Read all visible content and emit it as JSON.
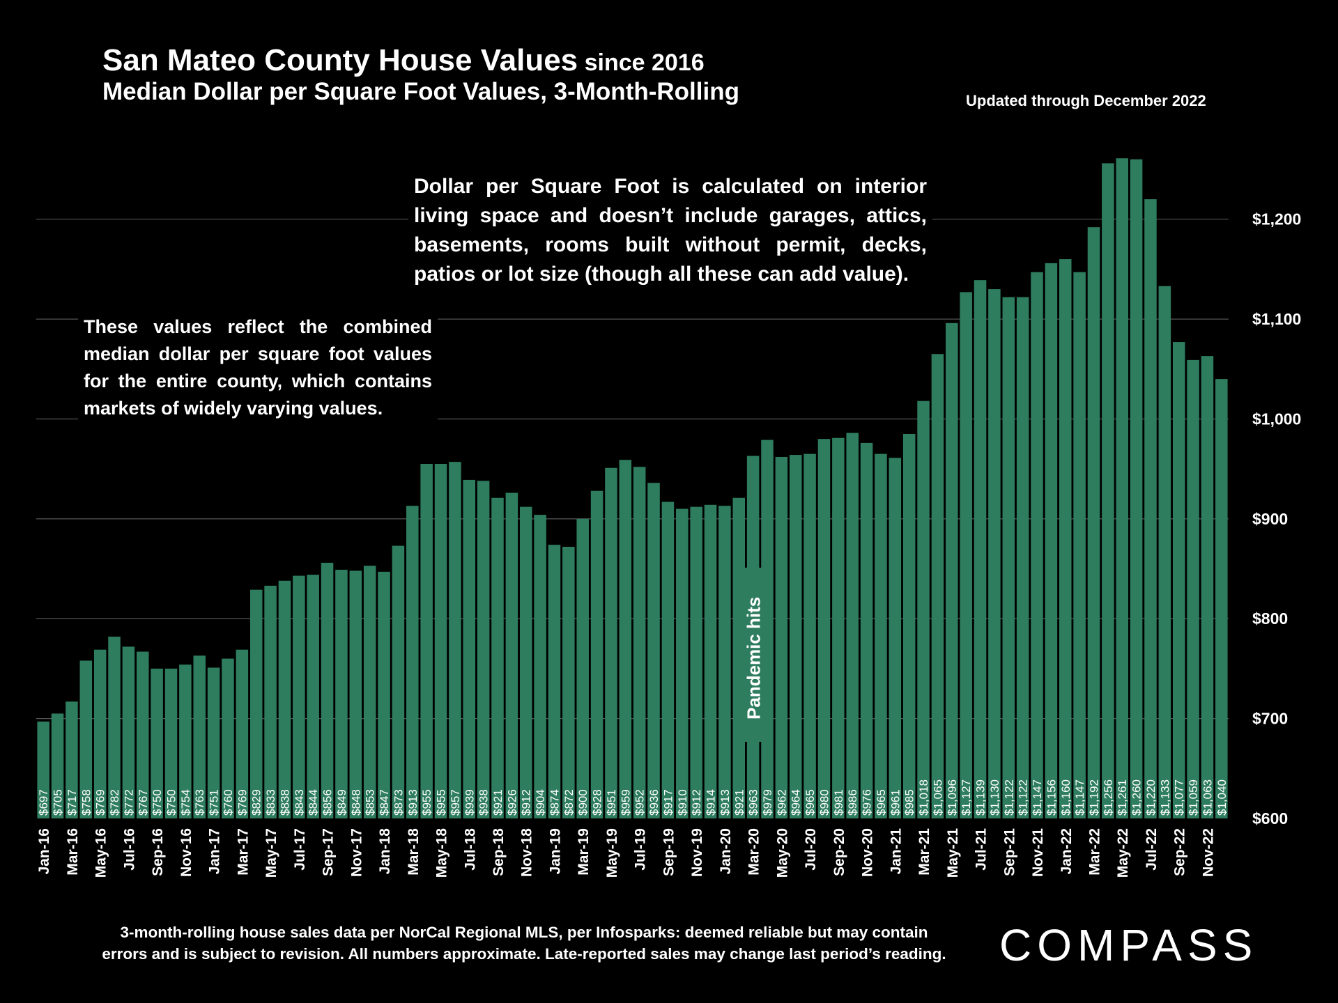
{
  "header": {
    "title": "San Mateo County House Values",
    "title_suffix": " since 2016",
    "subtitle": "Median Dollar per Square Foot Values, 3-Month-Rolling",
    "updated": "Updated through December 2022"
  },
  "notes": {
    "right": "Dollar per Square Foot is calculated on interior living space and doesn’t include garages, attics, basements, rooms built without permit, decks, patios or lot size (though all these can add value).",
    "left": "These values reflect the combined median dollar per square foot values for the entire county, which contains markets of widely varying values."
  },
  "footnote": {
    "line1": "3-month-rolling house sales data per NorCal Regional MLS, per Infosparks:  deemed reliable but may contain",
    "line2": "errors and is subject to revision. All numbers approximate. Late-reported sales may change last period’s reading."
  },
  "logo": "COMPASS",
  "colors": {
    "bar": "#2e7d5f",
    "background": "#000000",
    "grid": "#555555",
    "text": "#ffffff"
  },
  "chart_data": {
    "type": "bar",
    "title": "San Mateo County House Values since 2016",
    "subtitle": "Median Dollar per Square Foot Values, 3-Month-Rolling",
    "xlabel": "",
    "ylabel": "",
    "ylim": [
      600,
      1280
    ],
    "yticks": [
      600,
      700,
      800,
      900,
      1000,
      1100,
      1200
    ],
    "ytick_labels": [
      "$600",
      "$700",
      "$800",
      "$900",
      "$1,000",
      "$1,100",
      "$1,200"
    ],
    "y_axis_side": "right",
    "grid": true,
    "annotation": {
      "text": "Pandemic hits",
      "at_index": 50
    },
    "categories": [
      "Jan-16",
      "Feb-16",
      "Mar-16",
      "Apr-16",
      "May-16",
      "Jun-16",
      "Jul-16",
      "Aug-16",
      "Sep-16",
      "Oct-16",
      "Nov-16",
      "Dec-16",
      "Jan-17",
      "Feb-17",
      "Mar-17",
      "Apr-17",
      "May-17",
      "Jun-17",
      "Jul-17",
      "Aug-17",
      "Sep-17",
      "Oct-17",
      "Nov-17",
      "Dec-17",
      "Jan-18",
      "Feb-18",
      "Mar-18",
      "Apr-18",
      "May-18",
      "Jun-18",
      "Jul-18",
      "Aug-18",
      "Sep-18",
      "Oct-18",
      "Nov-18",
      "Dec-18",
      "Jan-19",
      "Feb-19",
      "Mar-19",
      "Apr-19",
      "May-19",
      "Jun-19",
      "Jul-19",
      "Aug-19",
      "Sep-19",
      "Oct-19",
      "Nov-19",
      "Dec-19",
      "Jan-20",
      "Feb-20",
      "Mar-20",
      "Apr-20",
      "May-20",
      "Jun-20",
      "Jul-20",
      "Aug-20",
      "Sep-20",
      "Oct-20",
      "Nov-20",
      "Dec-20",
      "Jan-21",
      "Feb-21",
      "Mar-21",
      "Apr-21",
      "May-21",
      "Jun-21",
      "Jul-21",
      "Aug-21",
      "Sep-21",
      "Oct-21",
      "Nov-21",
      "Dec-21",
      "Jan-22",
      "Feb-22",
      "Mar-22",
      "Apr-22",
      "May-22",
      "Jun-22",
      "Jul-22",
      "Aug-22",
      "Sep-22",
      "Oct-22",
      "Nov-22",
      "Dec-22"
    ],
    "values": [
      697,
      705,
      717,
      758,
      769,
      782,
      772,
      767,
      750,
      750,
      754,
      763,
      751,
      760,
      769,
      829,
      833,
      838,
      843,
      844,
      856,
      849,
      848,
      853,
      847,
      873,
      913,
      955,
      955,
      957,
      939,
      938,
      921,
      926,
      912,
      904,
      874,
      872,
      900,
      928,
      951,
      959,
      952,
      936,
      917,
      910,
      912,
      914,
      913,
      921,
      963,
      979,
      962,
      964,
      965,
      980,
      981,
      986,
      976,
      965,
      961,
      985,
      1018,
      1065,
      1096,
      1127,
      1139,
      1130,
      1122,
      1122,
      1147,
      1156,
      1160,
      1147,
      1192,
      1256,
      1261,
      1260,
      1220,
      1133,
      1077,
      1059,
      1063,
      1040
    ],
    "data_labels": [
      "$697",
      "$705",
      "$717",
      "$758",
      "$769",
      "$782",
      "$772",
      "$767",
      "$750",
      "$750",
      "$754",
      "$763",
      "$751",
      "$760",
      "$769",
      "$829",
      "$833",
      "$838",
      "$843",
      "$844",
      "$856",
      "$849",
      "$848",
      "$853",
      "$847",
      "$873",
      "$913",
      "$955",
      "$955",
      "$957",
      "$939",
      "$938",
      "$921",
      "$926",
      "$912",
      "$904",
      "$874",
      "$872",
      "$900",
      "$928",
      "$951",
      "$959",
      "$952",
      "$936",
      "$917",
      "$910",
      "$912",
      "$914",
      "$913",
      "$921",
      "$963",
      "$979",
      "$962",
      "$964",
      "$965",
      "$980",
      "$981",
      "$986",
      "$976",
      "$965",
      "$961",
      "$985",
      "$1,018",
      "$1,065",
      "$1,096",
      "$1,127",
      "$1,139",
      "$1,130",
      "$1,122",
      "$1,122",
      "$1,147",
      "$1,156",
      "$1,160",
      "$1,147",
      "$1,192",
      "$1,256",
      "$1,261",
      "$1,260",
      "$1,220",
      "$1,133",
      "$1,077",
      "$1,059",
      "$1,063",
      "$1,040"
    ],
    "x_tick_labels": [
      "Jan-16",
      "Mar-16",
      "May-16",
      "Jul-16",
      "Sep-16",
      "Nov-16",
      "Jan-17",
      "Mar-17",
      "May-17",
      "Jul-17",
      "Sep-17",
      "Nov-17",
      "Jan-18",
      "Mar-18",
      "May-18",
      "Jul-18",
      "Sep-18",
      "Nov-18",
      "Jan-19",
      "Mar-19",
      "May-19",
      "Jul-19",
      "Sep-19",
      "Nov-19",
      "Jan-20",
      "Mar-20",
      "May-20",
      "Jul-20",
      "Sep-20",
      "Nov-20",
      "Jan-21",
      "Mar-21",
      "May-21",
      "Jul-21",
      "Sep-21",
      "Nov-21",
      "Jan-22",
      "Mar-22",
      "May-22",
      "Jul-22",
      "Sep-22",
      "Nov-22"
    ]
  }
}
